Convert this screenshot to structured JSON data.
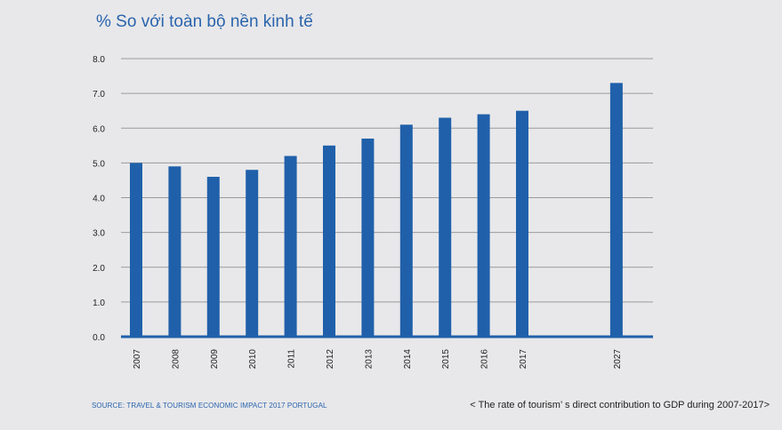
{
  "chart_data": {
    "type": "bar",
    "title": "% So với toàn bộ nền kinh tế",
    "xlabel": "",
    "ylabel": "",
    "categories": [
      "2007",
      "2008",
      "2009",
      "2010",
      "2011",
      "2012",
      "2013",
      "2014",
      "2015",
      "2016",
      "2017",
      "2027"
    ],
    "values": [
      5.0,
      4.9,
      4.6,
      4.8,
      5.2,
      5.5,
      5.7,
      6.1,
      6.3,
      6.4,
      6.5,
      7.3
    ],
    "ylim": [
      0,
      8
    ],
    "yticks": [
      "0.0",
      "1.0",
      "2.0",
      "3.0",
      "4.0",
      "5.0",
      "6.0",
      "7.0",
      "8.0"
    ],
    "grid": true,
    "bar_color": "#2060aa"
  },
  "source": "SOURCE: TRAVEL & TOURISM ECONOMIC IMPACT 2017 PORTUGAL",
  "caption": "< The rate of tourism’ s direct contribution to GDP during 2007-2017>"
}
